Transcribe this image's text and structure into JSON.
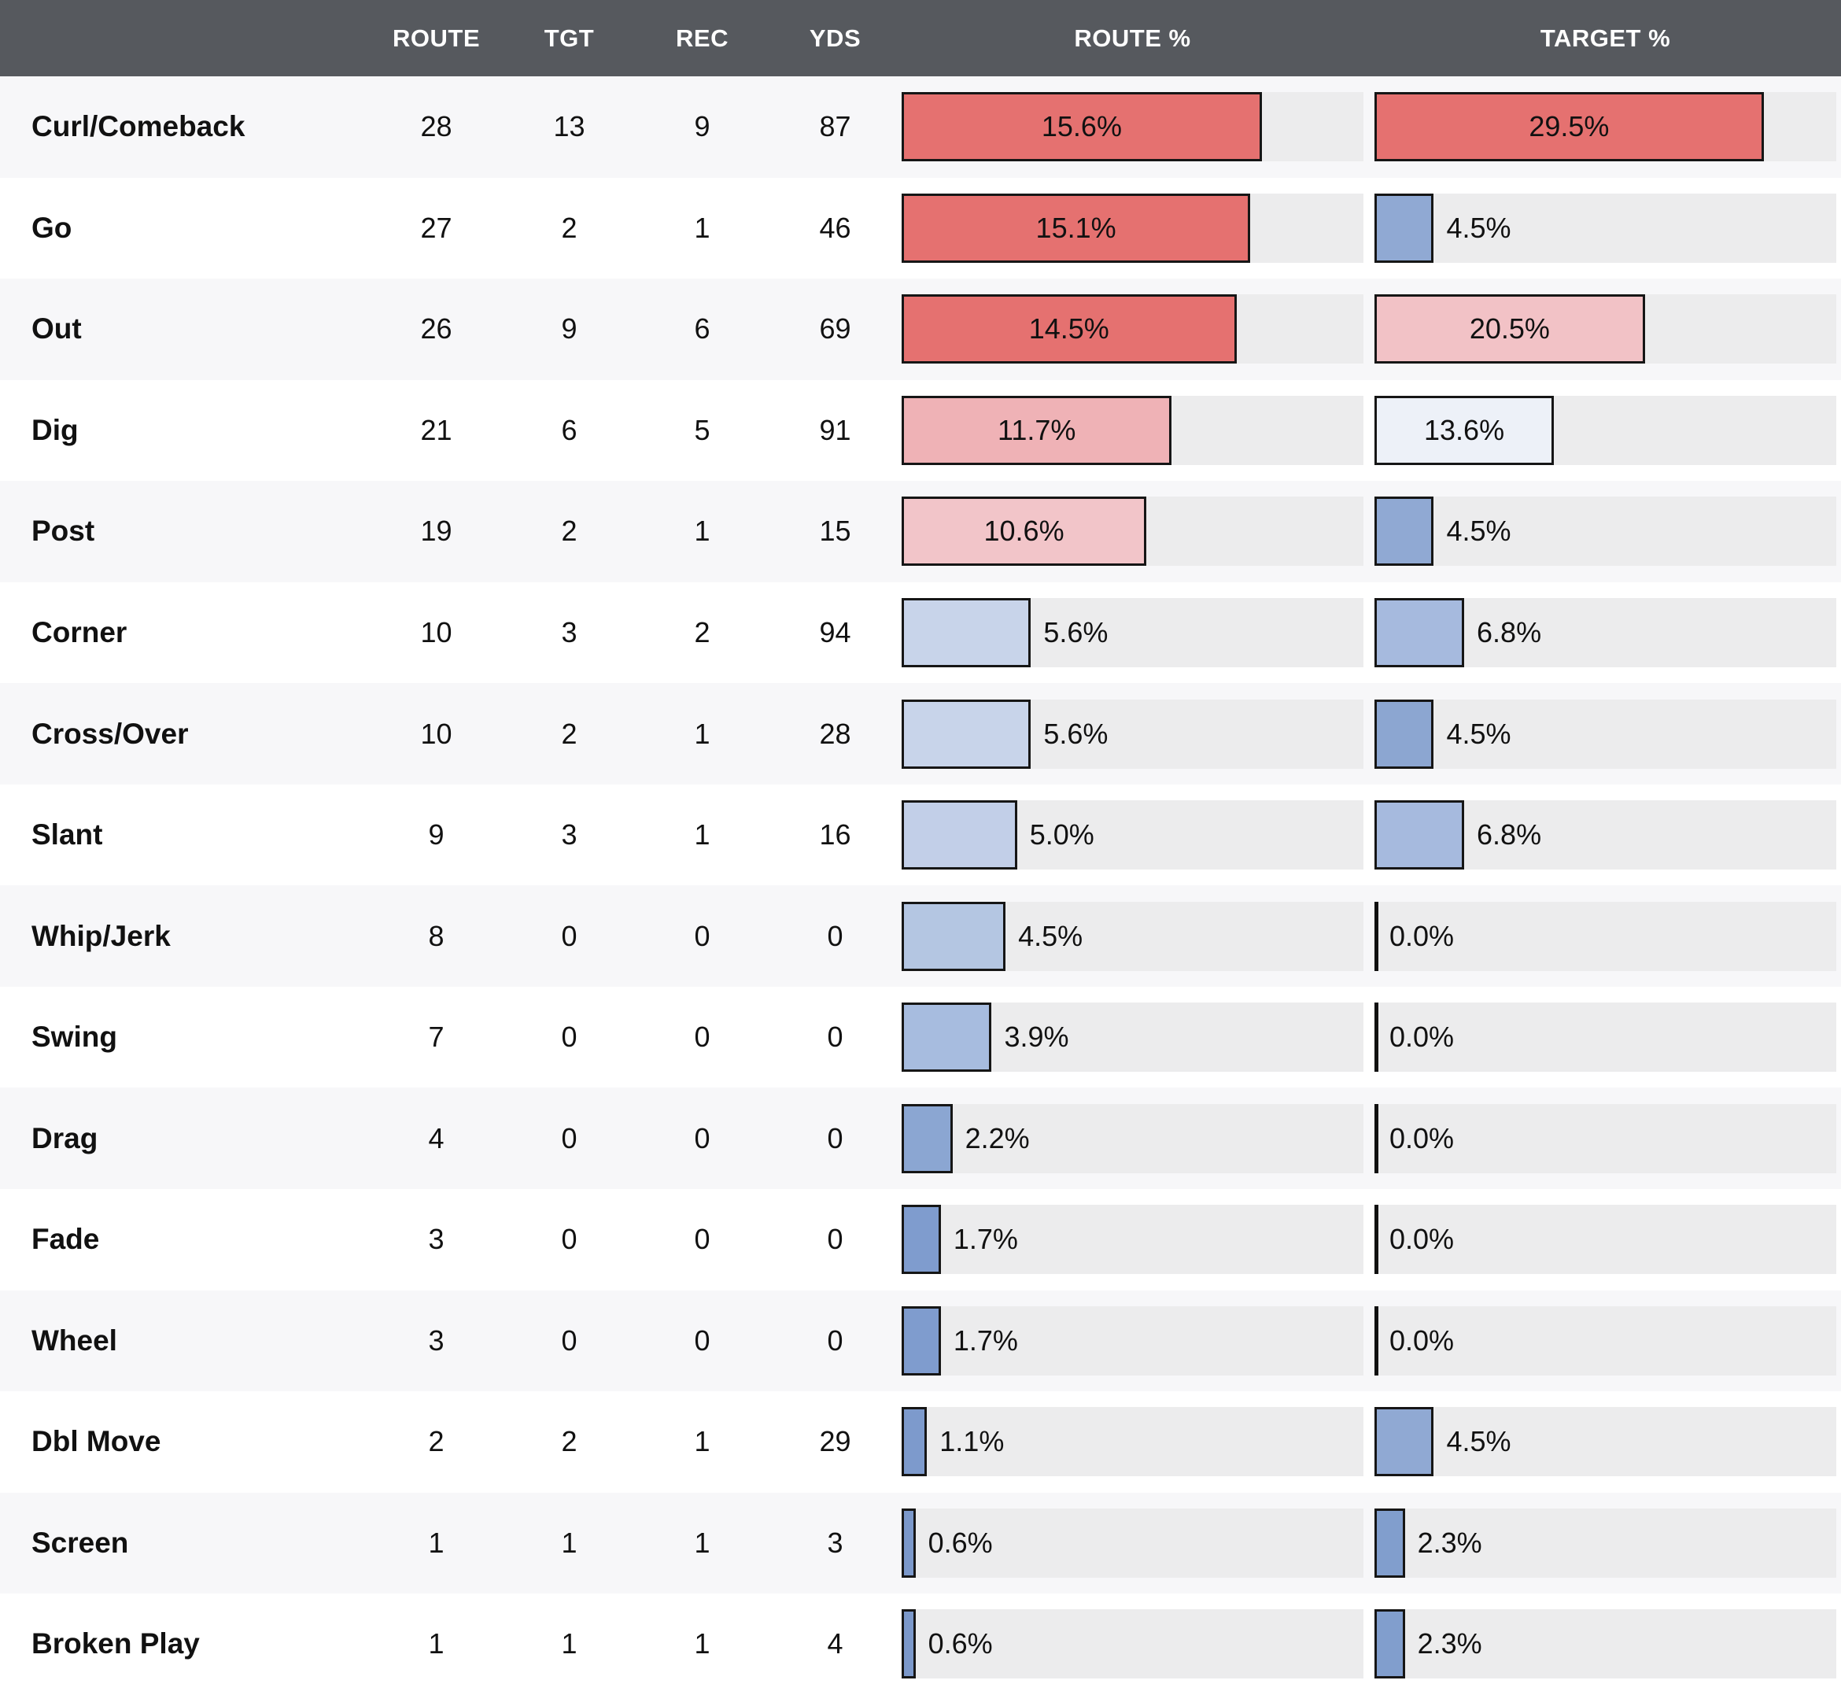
{
  "table": {
    "header": {
      "routes": "ROUTE",
      "tgt": "TGT",
      "rec": "REC",
      "yds": "YDS",
      "route_pct": "ROUTE %",
      "target_pct": "TARGET %"
    }
  },
  "colors": {
    "header_bg": "#56595e",
    "header_text": "#ffffff",
    "track_bg": "#ececed",
    "row_stripe": "#f7f7f9",
    "row_white": "#ffffff",
    "bar_border": "#161616",
    "zero_tick": "#111111",
    "text": "#111111",
    "red_high": "#e57170",
    "pink_mid": "#f2c2c6",
    "neutral_light": "#edf1f8",
    "blue_low": "#7b98ca"
  },
  "chart_data": {
    "type": "table",
    "columns": [
      "ROUTE",
      "TGT",
      "REC",
      "YDS",
      "ROUTE %",
      "TARGET %"
    ],
    "route_pct_axis_max": 20,
    "target_pct_axis_max": 35,
    "legend_position": "none",
    "rows": [
      {
        "route": "Curl/Comeback",
        "routes": 28,
        "tgt": 13,
        "rec": 9,
        "yds": 87,
        "route_pct": 15.6,
        "route_pct_label": "15.6%",
        "route_color": "#e57170",
        "target_pct": 29.5,
        "target_pct_label": "29.5%",
        "target_color": "#e57170"
      },
      {
        "route": "Go",
        "routes": 27,
        "tgt": 2,
        "rec": 1,
        "yds": 46,
        "route_pct": 15.1,
        "route_pct_label": "15.1%",
        "route_color": "#e57170",
        "target_pct": 4.5,
        "target_pct_label": "4.5%",
        "target_color": "#90a9d3"
      },
      {
        "route": "Out",
        "routes": 26,
        "tgt": 9,
        "rec": 6,
        "yds": 69,
        "route_pct": 14.5,
        "route_pct_label": "14.5%",
        "route_color": "#e57170",
        "target_pct": 20.5,
        "target_pct_label": "20.5%",
        "target_color": "#f2c2c6"
      },
      {
        "route": "Dig",
        "routes": 21,
        "tgt": 6,
        "rec": 5,
        "yds": 91,
        "route_pct": 11.7,
        "route_pct_label": "11.7%",
        "route_color": "#efb2b6",
        "target_pct": 13.6,
        "target_pct_label": "13.6%",
        "target_color": "#edf1f8"
      },
      {
        "route": "Post",
        "routes": 19,
        "tgt": 2,
        "rec": 1,
        "yds": 15,
        "route_pct": 10.6,
        "route_pct_label": "10.6%",
        "route_color": "#f2c5c9",
        "target_pct": 4.5,
        "target_pct_label": "4.5%",
        "target_color": "#90a9d3"
      },
      {
        "route": "Corner",
        "routes": 10,
        "tgt": 3,
        "rec": 2,
        "yds": 94,
        "route_pct": 5.6,
        "route_pct_label": "5.6%",
        "route_color": "#c8d4ea",
        "target_pct": 6.8,
        "target_pct_label": "6.8%",
        "target_color": "#a6bade"
      },
      {
        "route": "Cross/Over",
        "routes": 10,
        "tgt": 2,
        "rec": 1,
        "yds": 28,
        "route_pct": 5.6,
        "route_pct_label": "5.6%",
        "route_color": "#c8d4ea",
        "target_pct": 4.5,
        "target_pct_label": "4.5%",
        "target_color": "#8ca6d1"
      },
      {
        "route": "Slant",
        "routes": 9,
        "tgt": 3,
        "rec": 1,
        "yds": 16,
        "route_pct": 5.0,
        "route_pct_label": "5.0%",
        "route_color": "#c2cfe8",
        "target_pct": 6.8,
        "target_pct_label": "6.8%",
        "target_color": "#a6bade"
      },
      {
        "route": "Whip/Jerk",
        "routes": 8,
        "tgt": 0,
        "rec": 0,
        "yds": 0,
        "route_pct": 4.5,
        "route_pct_label": "4.5%",
        "route_color": "#b4c6e2",
        "target_pct": 0.0,
        "target_pct_label": "0.0%",
        "target_color": null
      },
      {
        "route": "Swing",
        "routes": 7,
        "tgt": 0,
        "rec": 0,
        "yds": 0,
        "route_pct": 3.9,
        "route_pct_label": "3.9%",
        "route_color": "#a7bcdf",
        "target_pct": 0.0,
        "target_pct_label": "0.0%",
        "target_color": null
      },
      {
        "route": "Drag",
        "routes": 4,
        "tgt": 0,
        "rec": 0,
        "yds": 0,
        "route_pct": 2.2,
        "route_pct_label": "2.2%",
        "route_color": "#8ba6d2",
        "target_pct": 0.0,
        "target_pct_label": "0.0%",
        "target_color": null
      },
      {
        "route": "Fade",
        "routes": 3,
        "tgt": 0,
        "rec": 0,
        "yds": 0,
        "route_pct": 1.7,
        "route_pct_label": "1.7%",
        "route_color": "#7f9cce",
        "target_pct": 0.0,
        "target_pct_label": "0.0%",
        "target_color": null
      },
      {
        "route": "Wheel",
        "routes": 3,
        "tgt": 0,
        "rec": 0,
        "yds": 0,
        "route_pct": 1.7,
        "route_pct_label": "1.7%",
        "route_color": "#7f9cce",
        "target_pct": 0.0,
        "target_pct_label": "0.0%",
        "target_color": null
      },
      {
        "route": "Dbl Move",
        "routes": 2,
        "tgt": 2,
        "rec": 1,
        "yds": 29,
        "route_pct": 1.1,
        "route_pct_label": "1.1%",
        "route_color": "#7d9acc",
        "target_pct": 4.5,
        "target_pct_label": "4.5%",
        "target_color": "#90a9d3"
      },
      {
        "route": "Screen",
        "routes": 1,
        "tgt": 1,
        "rec": 1,
        "yds": 3,
        "route_pct": 0.6,
        "route_pct_label": "0.6%",
        "route_color": "#7b98ca",
        "target_pct": 2.3,
        "target_pct_label": "2.3%",
        "target_color": "#819ecd"
      },
      {
        "route": "Broken Play",
        "routes": 1,
        "tgt": 1,
        "rec": 1,
        "yds": 4,
        "route_pct": 0.6,
        "route_pct_label": "0.6%",
        "route_color": "#7b98ca",
        "target_pct": 2.3,
        "target_pct_label": "2.3%",
        "target_color": "#819ecd"
      }
    ]
  }
}
